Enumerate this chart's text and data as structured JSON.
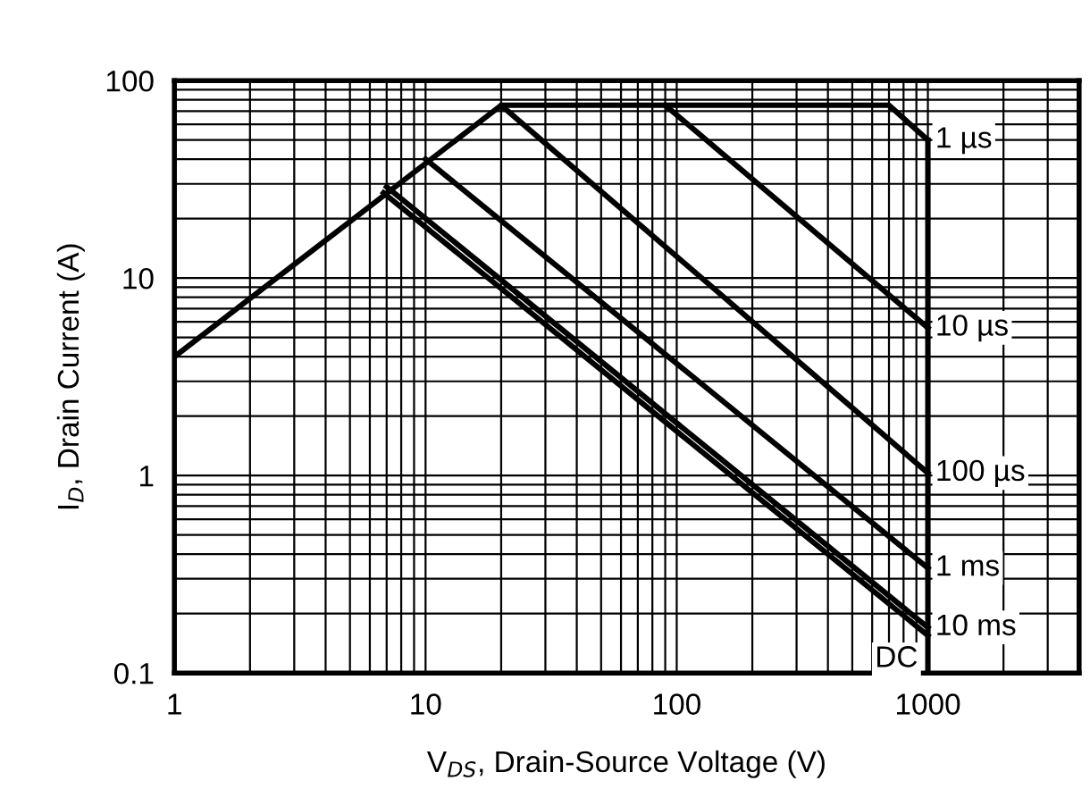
{
  "chart_data": {
    "type": "line",
    "xlabel": "V$_{DS}$, Drain-Source Voltage (V)",
    "ylabel": "I$_{D}$, Drain Current (A)",
    "log": "xy",
    "xlim": [
      1,
      4000
    ],
    "ylim": [
      0.1,
      100
    ],
    "xticks": [
      1,
      10,
      100,
      1000
    ],
    "yticks": [
      0.1,
      1,
      10,
      100
    ],
    "grid": true,
    "marker": "none",
    "line_style": "solid",
    "series": [
      {
        "name": "1 µs",
        "color": "#000000",
        "x": [
          1,
          20,
          700,
          1000
        ],
        "values": [
          4,
          75,
          75,
          50
        ]
      },
      {
        "color": "#000000",
        "x": [
          1000,
          1000
        ],
        "values": [
          50,
          0.1
        ]
      },
      {
        "name": "10 µs",
        "color": "#000000",
        "x": [
          90,
          1000
        ],
        "values": [
          75,
          5.6
        ]
      },
      {
        "name": "100 µs",
        "color": "#000000",
        "x": [
          20,
          1000
        ],
        "values": [
          75,
          1.03
        ]
      },
      {
        "name": "1 ms",
        "color": "#000000",
        "x": [
          10,
          1000
        ],
        "values": [
          40,
          0.34
        ]
      },
      {
        "name": "10 ms",
        "color": "#000000",
        "x": [
          7,
          1000
        ],
        "values": [
          29,
          0.17
        ]
      },
      {
        "name": "DC",
        "color": "#000000",
        "x": [
          6.8,
          1000
        ],
        "values": [
          27,
          0.155
        ]
      }
    ]
  }
}
